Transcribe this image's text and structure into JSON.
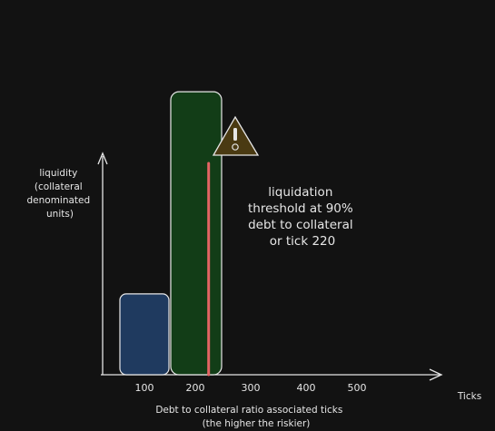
{
  "chart_data": {
    "type": "bar",
    "categories": [
      "100",
      "200"
    ],
    "values": [
      22,
      77
    ],
    "colors": {
      "bars": [
        "#1f3a5f",
        "#123d17"
      ],
      "bar_stroke": "#e8e8e8",
      "threshold_line": "#e46464",
      "warning_fill": "#4a3a12",
      "axis": "#e6e6e6",
      "text": "#e6e6e6",
      "background": "#121212"
    },
    "x_ticks": [
      "100",
      "200",
      "300",
      "400",
      "500"
    ],
    "ylabel_lines": [
      "liquidity",
      "(collateral",
      "denominated",
      "units)"
    ],
    "xlabel_lines": [
      "Debt to collateral ratio associated ticks",
      "(the higher the riskier)"
    ],
    "x_axis_name": "Ticks",
    "threshold": {
      "tick": 220,
      "annotation_lines": [
        "liquidation",
        "threshold at 90%",
        "debt to collateral",
        "or tick 220"
      ],
      "icon": "warning-icon"
    },
    "legend": "none",
    "grid": false
  }
}
